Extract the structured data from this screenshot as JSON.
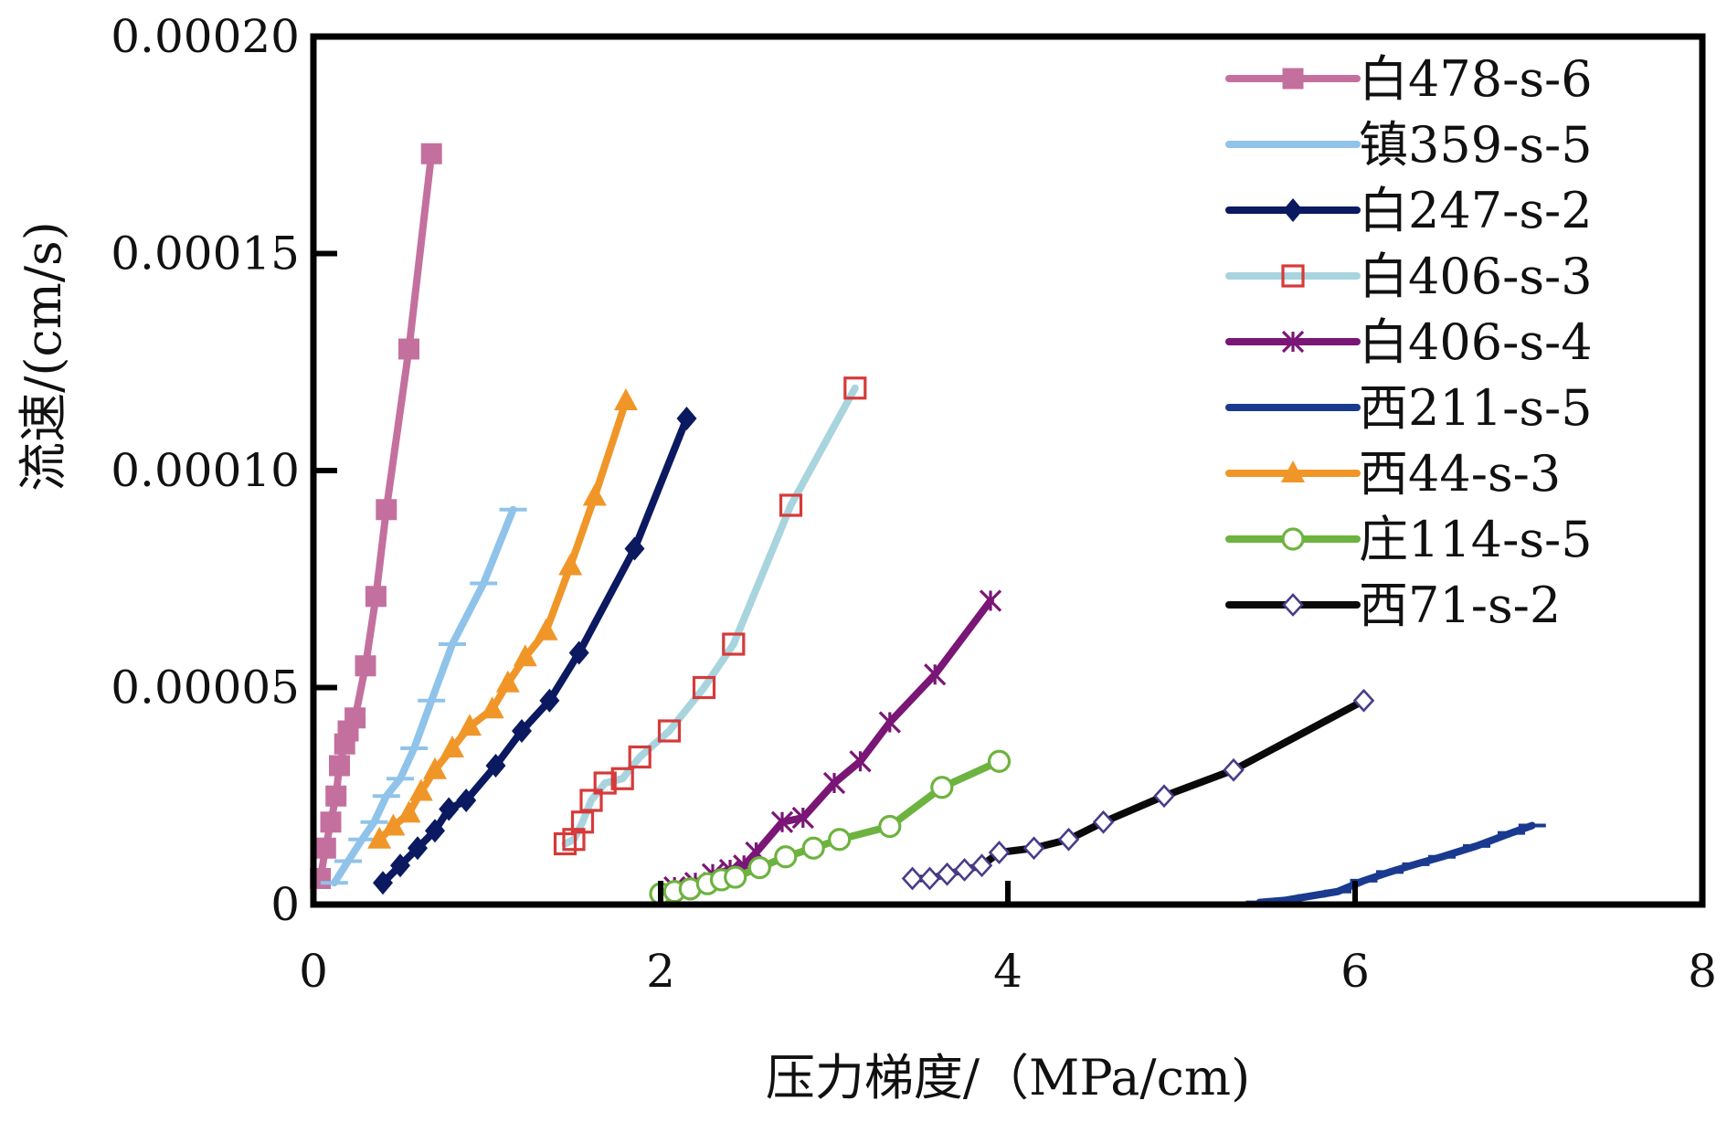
{
  "chart_data": {
    "type": "line",
    "xlabel": "压力梯度/（MPa/cm)",
    "ylabel": "流速/(cm/s)",
    "xlim": [
      0,
      8
    ],
    "ylim": [
      0,
      0.0002
    ],
    "xticks": [
      0,
      2,
      4,
      6,
      8
    ],
    "xtick_labels": [
      "0",
      "2",
      "4",
      "6",
      "8"
    ],
    "yticks": [
      0,
      5e-05,
      0.0001,
      0.00015,
      0.0002
    ],
    "ytick_labels": [
      "0",
      "0.00005",
      "0.00010",
      "0.00015",
      "0.00020"
    ],
    "grid": false,
    "legend_position": "top-right",
    "series": [
      {
        "name": "白478-s-6",
        "color": "#c4709f",
        "marker": "square-filled",
        "x": [
          0.04,
          0.07,
          0.1,
          0.13,
          0.15,
          0.18,
          0.2,
          0.24,
          0.3,
          0.36,
          0.42,
          0.55,
          0.68
        ],
        "y": [
          6e-06,
          1.3e-05,
          1.9e-05,
          2.5e-05,
          3.2e-05,
          3.7e-05,
          4e-05,
          4.3e-05,
          5.5e-05,
          7.1e-05,
          9.1e-05,
          0.000128,
          0.000173
        ]
      },
      {
        "name": "镇359-s-5",
        "color": "#8fc3ea",
        "marker": "dash",
        "x": [
          0.12,
          0.2,
          0.28,
          0.35,
          0.42,
          0.5,
          0.58,
          0.68,
          0.8,
          0.98,
          1.15
        ],
        "y": [
          5e-06,
          1e-05,
          1.5e-05,
          1.9e-05,
          2.5e-05,
          2.9e-05,
          3.6e-05,
          4.7e-05,
          6e-05,
          7.4e-05,
          9.1e-05
        ]
      },
      {
        "name": "白247-s-2",
        "color": "#0b1960",
        "marker": "diamond-filled",
        "x": [
          0.4,
          0.5,
          0.6,
          0.7,
          0.78,
          0.88,
          1.05,
          1.2,
          1.36,
          1.53,
          1.85,
          2.15
        ],
        "y": [
          5e-06,
          9e-06,
          1.3e-05,
          1.7e-05,
          2.2e-05,
          2.4e-05,
          3.2e-05,
          4e-05,
          4.7e-05,
          5.8e-05,
          8.2e-05,
          0.000112
        ]
      },
      {
        "name": "白406-s-3",
        "color": "#a8d4de",
        "marker": "square-open",
        "marker_color": "#d63a3a",
        "x": [
          1.45,
          1.5,
          1.55,
          1.6,
          1.68,
          1.78,
          1.88,
          2.05,
          2.25,
          2.42,
          2.75,
          3.12
        ],
        "y": [
          1.4e-05,
          1.5e-05,
          1.9e-05,
          2.4e-05,
          2.8e-05,
          2.9e-05,
          3.4e-05,
          4e-05,
          5e-05,
          6e-05,
          9.2e-05,
          0.000119
        ]
      },
      {
        "name": "白406-s-4",
        "color": "#7a1676",
        "marker": "asterisk",
        "x": [
          2.08,
          2.2,
          2.3,
          2.4,
          2.48,
          2.55,
          2.7,
          2.82,
          3.0,
          3.15,
          3.32,
          3.58,
          3.9
        ],
        "y": [
          4e-06,
          5e-06,
          7e-06,
          8e-06,
          9e-06,
          1.2e-05,
          1.9e-05,
          2e-05,
          2.8e-05,
          3.3e-05,
          4.2e-05,
          5.3e-05,
          7e-05
        ]
      },
      {
        "name": "西211-s-5",
        "color": "#1a3a8f",
        "marker": "dash",
        "x": [
          5.45,
          5.6,
          5.75,
          5.9,
          6.05,
          6.2,
          6.35,
          6.5,
          6.7,
          6.9,
          7.02
        ],
        "y": [
          5e-07,
          1e-06,
          2e-06,
          3e-06,
          5.5e-06,
          7.5e-06,
          9.3e-06,
          1.1e-05,
          1.35e-05,
          1.65e-05,
          1.82e-05
        ]
      },
      {
        "name": "西44-s-3",
        "color": "#f09628",
        "marker": "triangle-filled",
        "x": [
          0.38,
          0.46,
          0.55,
          0.62,
          0.7,
          0.8,
          0.9,
          1.03,
          1.12,
          1.22,
          1.34,
          1.48,
          1.62,
          1.8
        ],
        "y": [
          1.5e-05,
          1.8e-05,
          2.1e-05,
          2.6e-05,
          3.1e-05,
          3.6e-05,
          4.1e-05,
          4.5e-05,
          5.1e-05,
          5.7e-05,
          6.3e-05,
          7.8e-05,
          9.4e-05,
          0.000116
        ]
      },
      {
        "name": "庄114-s-5",
        "color": "#6db33f",
        "marker": "circle-open",
        "x": [
          2.0,
          2.08,
          2.17,
          2.27,
          2.35,
          2.43,
          2.57,
          2.72,
          2.88,
          3.03,
          3.32,
          3.62,
          3.95
        ],
        "y": [
          2.5e-06,
          3e-06,
          3.6e-06,
          4.8e-06,
          5.7e-06,
          6.3e-06,
          8.5e-06,
          1.1e-05,
          1.3e-05,
          1.5e-05,
          1.8e-05,
          2.7e-05,
          3.3e-05
        ]
      },
      {
        "name": "西71-s-2",
        "color": "#0a0a0a",
        "marker": "diamond-open",
        "marker_color": "#4a3a8a",
        "x": [
          3.45,
          3.55,
          3.65,
          3.75,
          3.85,
          3.95,
          4.15,
          4.35,
          4.55,
          4.9,
          5.3,
          6.05
        ],
        "y": [
          6e-06,
          6e-06,
          7e-06,
          8e-06,
          9e-06,
          1.2e-05,
          1.3e-05,
          1.5e-05,
          1.9e-05,
          2.5e-05,
          3.1e-05,
          4.7e-05
        ]
      }
    ]
  }
}
